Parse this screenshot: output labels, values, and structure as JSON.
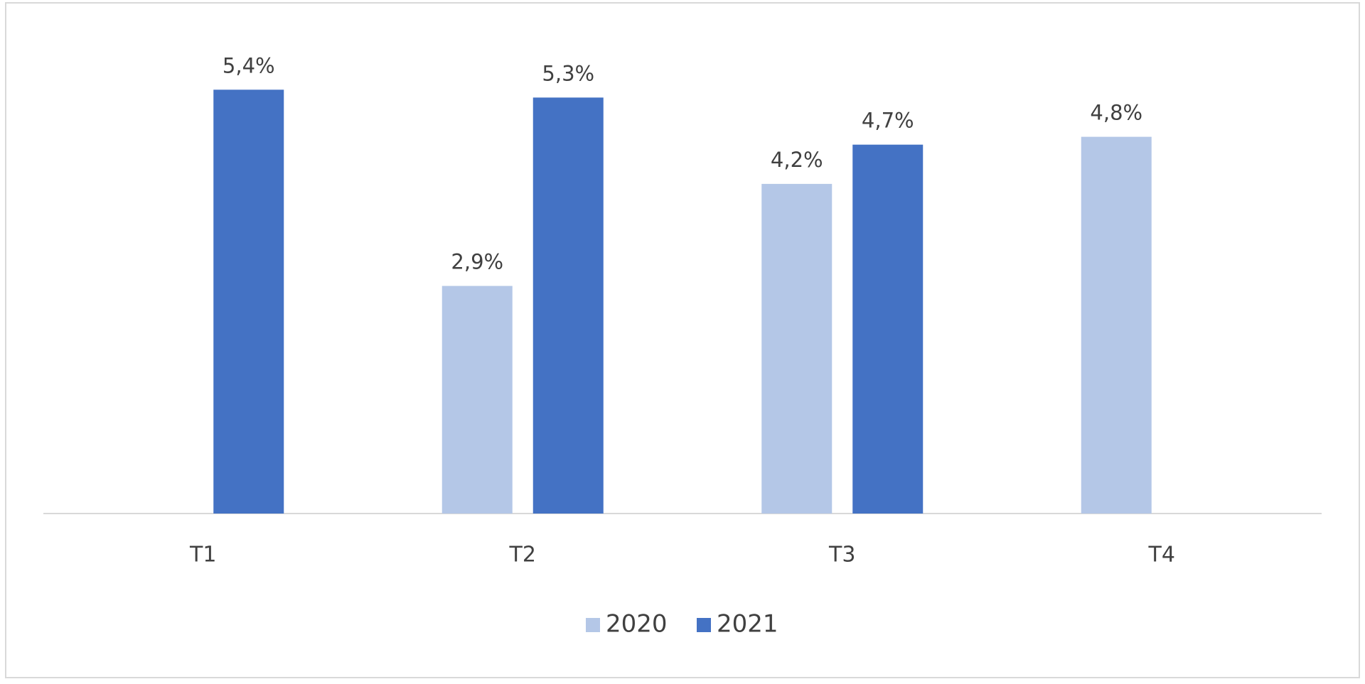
{
  "chart_data": {
    "type": "bar",
    "categories": [
      "T1",
      "T2",
      "T3",
      "T4"
    ],
    "series": [
      {
        "name": "2020",
        "color": "#b4c7e7",
        "values": [
          null,
          2.9,
          4.2,
          4.8
        ],
        "value_labels": [
          null,
          "2,9%",
          "4,2%",
          "4,8%"
        ]
      },
      {
        "name": "2021",
        "color": "#4472c4",
        "values": [
          5.4,
          5.3,
          4.7,
          null
        ],
        "value_labels": [
          "5,4%",
          "5,3%",
          "4,7%",
          null
        ]
      }
    ],
    "ylim": [
      0,
      6
    ],
    "legend": "bottom"
  }
}
